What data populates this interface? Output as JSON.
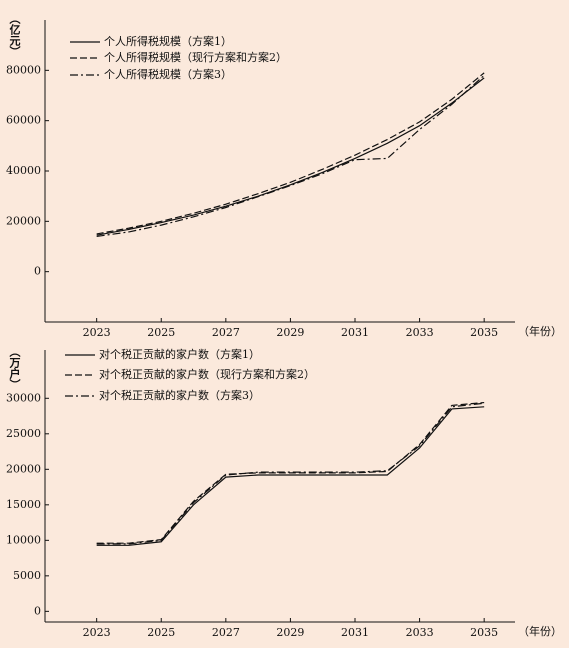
{
  "chart_data": [
    {
      "type": "line",
      "y_label": "（亿元）",
      "x_label": "（年份）",
      "x": [
        2023,
        2024,
        2025,
        2026,
        2027,
        2028,
        2029,
        2030,
        2031,
        2032,
        2033,
        2034,
        2035
      ],
      "xlim": [
        2021.4,
        2035.8
      ],
      "xticks": [
        2023,
        2025,
        2027,
        2029,
        2031,
        2033,
        2035
      ],
      "ylim": [
        -20000,
        100000
      ],
      "yticks": [
        0,
        20000,
        40000,
        60000,
        80000
      ],
      "series": [
        {
          "name": "个人所得税规模（方案1）",
          "color": "#111111",
          "style": "solid",
          "values": [
            14500,
            16800,
            19500,
            22500,
            26000,
            30000,
            34500,
            39500,
            45000,
            51000,
            58000,
            67000,
            77000
          ]
        },
        {
          "name": "个人所得税规模（现行方案和方案2）",
          "color": "#111111",
          "style": "dashed",
          "values": [
            15000,
            17300,
            20000,
            23200,
            26800,
            31000,
            35500,
            40700,
            46300,
            52500,
            59500,
            68500,
            79000
          ]
        },
        {
          "name": "个人所得税规模（方案3）",
          "color": "#111111",
          "style": "dashdot",
          "values": [
            14000,
            15800,
            18500,
            21800,
            25500,
            29800,
            34200,
            39000,
            44500,
            45000,
            56500,
            66500,
            78000
          ]
        }
      ]
    },
    {
      "type": "line",
      "y_label": "（万户）",
      "x_label": "（年份）",
      "x": [
        2023,
        2024,
        2025,
        2026,
        2027,
        2028,
        2029,
        2030,
        2031,
        2032,
        2033,
        2034,
        2035
      ],
      "xlim": [
        2021.4,
        2035.8
      ],
      "xticks": [
        2023,
        2025,
        2027,
        2029,
        2031,
        2033,
        2035
      ],
      "ylim": [
        -1500,
        36800
      ],
      "yticks": [
        0,
        5000,
        10000,
        15000,
        20000,
        25000,
        30000
      ],
      "series": [
        {
          "name": "对个税正贡献的家户数（方案1）",
          "color": "#111111",
          "style": "solid",
          "values": [
            9300,
            9300,
            9800,
            15000,
            18900,
            19200,
            19200,
            19200,
            19200,
            19200,
            23000,
            28500,
            28800
          ]
        },
        {
          "name": "对个税正贡献的家户数（现行方案和方案2）",
          "color": "#111111",
          "style": "dashed",
          "values": [
            9600,
            9600,
            10100,
            15500,
            19300,
            19500,
            19500,
            19500,
            19500,
            19700,
            23500,
            29000,
            29400
          ]
        },
        {
          "name": "对个税正贡献的家户数（方案3）",
          "color": "#111111",
          "style": "dashdot",
          "values": [
            9500,
            9500,
            10000,
            15300,
            19200,
            19600,
            19600,
            19600,
            19600,
            19800,
            23300,
            28800,
            29300
          ]
        }
      ]
    }
  ]
}
